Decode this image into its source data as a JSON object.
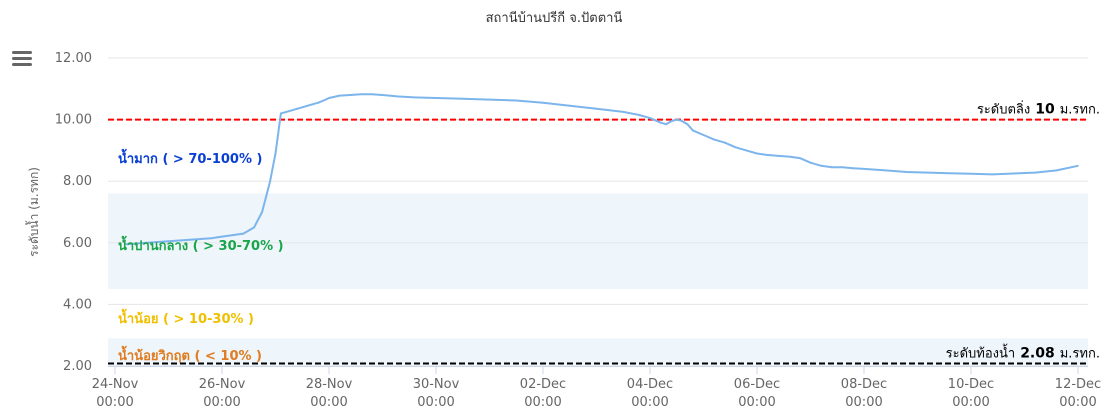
{
  "toolbar": {
    "menu_icon": "hamburger-menu-icon"
  },
  "chart_data": {
    "type": "line",
    "title": "สถานีบ้านปรีกี จ.ปัตตานี",
    "ylabel": "ระดับน้ำ (ม.รทก)",
    "xlabel": "",
    "ylim": [
      2.0,
      12.0
    ],
    "y_ticks": [
      "2.00",
      "4.00",
      "6.00",
      "8.00",
      "10.00",
      "12.00"
    ],
    "x_ticks": [
      {
        "day": 0,
        "date": "24-Nov",
        "time": "00:00"
      },
      {
        "day": 2,
        "date": "26-Nov",
        "time": "00:00"
      },
      {
        "day": 4,
        "date": "28-Nov",
        "time": "00:00"
      },
      {
        "day": 6,
        "date": "30-Nov",
        "time": "00:00"
      },
      {
        "day": 8,
        "date": "02-Dec",
        "time": "00:00"
      },
      {
        "day": 10,
        "date": "04-Dec",
        "time": "00:00"
      },
      {
        "day": 12,
        "date": "06-Dec",
        "time": "00:00"
      },
      {
        "day": 14,
        "date": "08-Dec",
        "time": "00:00"
      },
      {
        "day": 16,
        "date": "10-Dec",
        "time": "00:00"
      },
      {
        "day": 18,
        "date": "12-Dec",
        "time": "00:00"
      }
    ],
    "series": [
      {
        "color": "#7cb5ec",
        "x": [
          0.2,
          0.6,
          1.0,
          1.4,
          1.8,
          2.0,
          2.2,
          2.4,
          2.6,
          2.75,
          2.9,
          3.0,
          3.1,
          3.2,
          3.3,
          3.4,
          3.5,
          3.6,
          3.7,
          3.8,
          3.9,
          4.0,
          4.2,
          4.4,
          4.6,
          4.8,
          5.0,
          5.3,
          5.6,
          6.0,
          6.5,
          7.0,
          7.5,
          8.0,
          8.5,
          9.0,
          9.5,
          9.8,
          10.0,
          10.2,
          10.3,
          10.4,
          10.5,
          10.6,
          10.7,
          10.8,
          11.0,
          11.2,
          11.4,
          11.6,
          11.8,
          12.0,
          12.2,
          12.4,
          12.6,
          12.8,
          13.0,
          13.2,
          13.4,
          13.6,
          13.8,
          14.0,
          14.4,
          14.8,
          15.2,
          15.6,
          16.0,
          16.4,
          16.8,
          17.2,
          17.6,
          18.0
        ],
        "values": [
          5.95,
          6.0,
          6.05,
          6.1,
          6.15,
          6.2,
          6.25,
          6.3,
          6.5,
          7.0,
          8.0,
          8.9,
          10.2,
          10.25,
          10.3,
          10.35,
          10.4,
          10.45,
          10.5,
          10.55,
          10.62,
          10.7,
          10.78,
          10.8,
          10.82,
          10.82,
          10.8,
          10.75,
          10.72,
          10.7,
          10.68,
          10.65,
          10.62,
          10.55,
          10.45,
          10.35,
          10.25,
          10.15,
          10.05,
          9.9,
          9.85,
          9.95,
          10.0,
          9.95,
          9.85,
          9.65,
          9.5,
          9.35,
          9.25,
          9.1,
          9.0,
          8.9,
          8.85,
          8.82,
          8.8,
          8.75,
          8.6,
          8.5,
          8.45,
          8.45,
          8.42,
          8.4,
          8.35,
          8.3,
          8.28,
          8.26,
          8.24,
          8.22,
          8.25,
          8.28,
          8.35,
          8.5
        ]
      }
    ],
    "bands": [
      {
        "label": "น้ำมาก ( > 70-100% )",
        "color": "#0a3fd4"
      },
      {
        "label": "น้ำปานกลาง ( > 30-70% )",
        "color": "#19a54a",
        "from": 4.5,
        "to": 7.6,
        "fill": "#eef5fb"
      },
      {
        "label": "น้ำน้อย ( > 10-30% )",
        "color": "#f0c000"
      },
      {
        "label": "น้ำน้อยวิกฤต ( < 10% )",
        "color": "#e07b1f",
        "from": 2.0,
        "to": 2.9,
        "fill": "#eef5fb"
      }
    ],
    "plot_lines": [
      {
        "value": 10.0,
        "color": "#ff0000",
        "label_prefix": "ระดับตลิ่ง",
        "label_value": "10",
        "label_unit": "ม.รทก."
      },
      {
        "value": 2.08,
        "color": "#000000",
        "label_prefix": "ระดับท้องน้ำ",
        "label_value": "2.08",
        "label_unit": "ม.รทก."
      }
    ]
  }
}
